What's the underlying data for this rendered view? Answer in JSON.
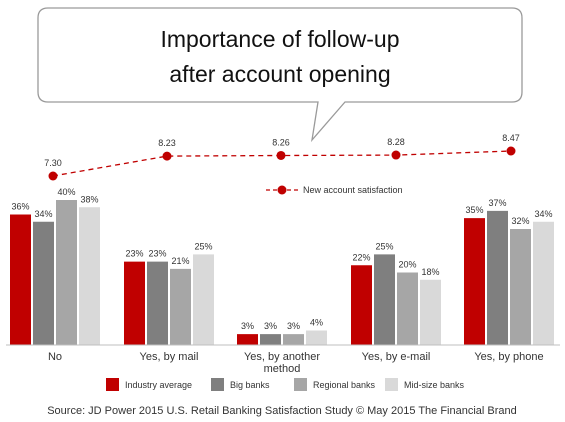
{
  "colors": {
    "industry": "#c00000",
    "big": "#7f7f7f",
    "regional": "#a6a6a6",
    "midsize": "#d9d9d9",
    "line": "#c00000"
  },
  "chart_data": {
    "type": "bar",
    "title_lines": [
      "Importance of follow-up",
      "after account opening"
    ],
    "categories": [
      [
        "No"
      ],
      [
        "Yes, by mail"
      ],
      [
        "Yes, by another",
        "method"
      ],
      [
        "Yes, by e-mail"
      ],
      [
        "Yes, by phone"
      ]
    ],
    "series": [
      {
        "name": "Industry average",
        "values": [
          36,
          23,
          3,
          22,
          35
        ],
        "labels": [
          "36%",
          "23%",
          "3%",
          "22%",
          "35%"
        ]
      },
      {
        "name": "Big banks",
        "values": [
          34,
          23,
          3,
          25,
          37
        ],
        "labels": [
          "34%",
          "23%",
          "3%",
          "25%",
          "37%"
        ]
      },
      {
        "name": "Regional banks",
        "values": [
          40,
          21,
          3,
          20,
          32
        ],
        "labels": [
          "40%",
          "21%",
          "3%",
          "20%",
          "32%"
        ]
      },
      {
        "name": "Mid-size banks",
        "values": [
          38,
          25,
          4,
          18,
          34
        ],
        "labels": [
          "38%",
          "25%",
          "4%",
          "18%",
          "34%"
        ]
      }
    ],
    "line_series": {
      "name": "New account satisfaction",
      "values": [
        7.3,
        8.23,
        8.26,
        8.28,
        8.47
      ],
      "labels": [
        "7.30",
        "8.23",
        "8.26",
        "8.28",
        "8.47"
      ]
    },
    "ylim": [
      0,
      40
    ],
    "grid": false,
    "legend_position": "bottom"
  },
  "source": "Source: JD Power 2015 U.S. Retail Banking Satisfaction Study © May 2015 The Financial Brand"
}
